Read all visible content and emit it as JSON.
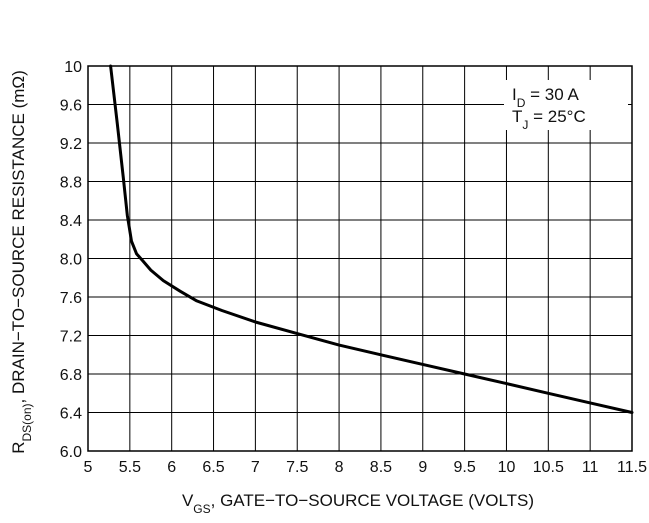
{
  "chart_data": {
    "type": "line",
    "title": "",
    "xlabel": {
      "main": "V",
      "sub": "GS",
      "rest": ", GATE−TO−SOURCE VOLTAGE (VOLTS)"
    },
    "ylabel": {
      "main": "R",
      "sub": "DS(on)",
      "rest": ", DRAIN−TO−SOURCE RESISTANCE (mΩ)"
    },
    "xlim": [
      5,
      11.5
    ],
    "ylim": [
      6.0,
      10
    ],
    "x_ticks": [
      5,
      5.5,
      6,
      6.5,
      7,
      7.5,
      8,
      8.5,
      9,
      9.5,
      10,
      10.5,
      11,
      11.5
    ],
    "x_tick_labels": [
      "5",
      "5.5",
      "6",
      "6.5",
      "7",
      "7.5",
      "8",
      "8.5",
      "9",
      "9.5",
      "10",
      "10.5",
      "11",
      "11.5"
    ],
    "y_ticks": [
      6.0,
      6.4,
      6.8,
      7.2,
      7.6,
      8.0,
      8.4,
      8.8,
      9.2,
      9.6,
      10
    ],
    "y_tick_labels": [
      "6.0",
      "6.4",
      "6.8",
      "7.2",
      "7.6",
      "8.0",
      "8.4",
      "8.8",
      "9.2",
      "9.6",
      "10"
    ],
    "grid": true,
    "annotations": [
      {
        "main": "I",
        "sub": "D",
        "rest": " = 30 A"
      },
      {
        "main": "T",
        "sub": "J",
        "rest": " = 25°C"
      }
    ],
    "series": [
      {
        "x": [
          5.27,
          5.35,
          5.42,
          5.47,
          5.52,
          5.58,
          5.65,
          5.75,
          5.9,
          6.1,
          6.3,
          6.6,
          7.0,
          7.5,
          8.0,
          8.5,
          9.0,
          9.5,
          10.0,
          10.5,
          11.0,
          11.5
        ],
        "y": [
          10.0,
          9.4,
          8.85,
          8.45,
          8.18,
          8.05,
          7.98,
          7.88,
          7.77,
          7.66,
          7.56,
          7.46,
          7.34,
          7.22,
          7.1,
          7.0,
          6.9,
          6.8,
          6.7,
          6.6,
          6.5,
          6.4
        ]
      }
    ]
  }
}
